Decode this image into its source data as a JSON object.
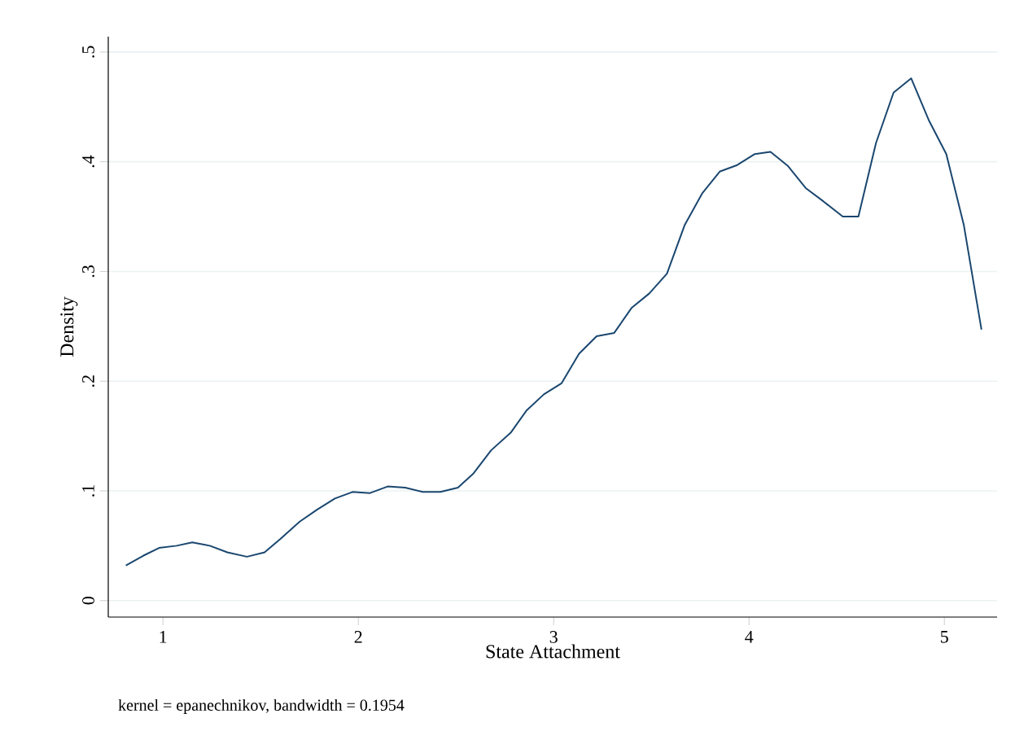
{
  "chart_data": {
    "type": "line",
    "xlabel": "State Attachment",
    "ylabel": "Density",
    "annotations": [
      "kernel = epanechnikov, bandwidth = 0.1954"
    ],
    "x": [
      0.81,
      0.9,
      0.98,
      1.07,
      1.15,
      1.24,
      1.33,
      1.43,
      1.52,
      1.6,
      1.7,
      1.79,
      1.88,
      1.97,
      2.06,
      2.15,
      2.24,
      2.33,
      2.42,
      2.51,
      2.59,
      2.68,
      2.78,
      2.86,
      2.95,
      3.04,
      3.13,
      3.22,
      3.31,
      3.4,
      3.49,
      3.58,
      3.67,
      3.76,
      3.85,
      3.94,
      4.03,
      4.11,
      4.2,
      4.29,
      4.38,
      4.48,
      4.56,
      4.65,
      4.74,
      4.83,
      4.92,
      5.01,
      5.1,
      5.19
    ],
    "values": [
      0.032,
      0.041,
      0.048,
      0.05,
      0.053,
      0.05,
      0.044,
      0.04,
      0.044,
      0.056,
      0.072,
      0.083,
      0.093,
      0.099,
      0.098,
      0.104,
      0.103,
      0.099,
      0.099,
      0.103,
      0.116,
      0.137,
      0.153,
      0.173,
      0.188,
      0.198,
      0.225,
      0.241,
      0.244,
      0.267,
      0.28,
      0.298,
      0.342,
      0.371,
      0.391,
      0.397,
      0.407,
      0.409,
      0.396,
      0.376,
      0.364,
      0.35,
      0.35,
      0.417,
      0.463,
      0.476,
      0.438,
      0.407,
      0.342,
      0.247
    ],
    "color": "#1a476f",
    "xlim": [
      0.72,
      5.27
    ],
    "ylim": [
      -0.015,
      0.514
    ],
    "xticks": [
      1,
      2,
      3,
      4,
      5
    ],
    "yticks": [
      0,
      {
        "value": 0.1,
        "label": ".1"
      },
      {
        "value": 0.2,
        "label": ".2"
      },
      {
        "value": 0.3,
        "label": ".3"
      },
      {
        "value": 0.4,
        "label": ".4"
      },
      {
        "value": 0.5,
        "label": ".5"
      }
    ],
    "grid": "y"
  }
}
